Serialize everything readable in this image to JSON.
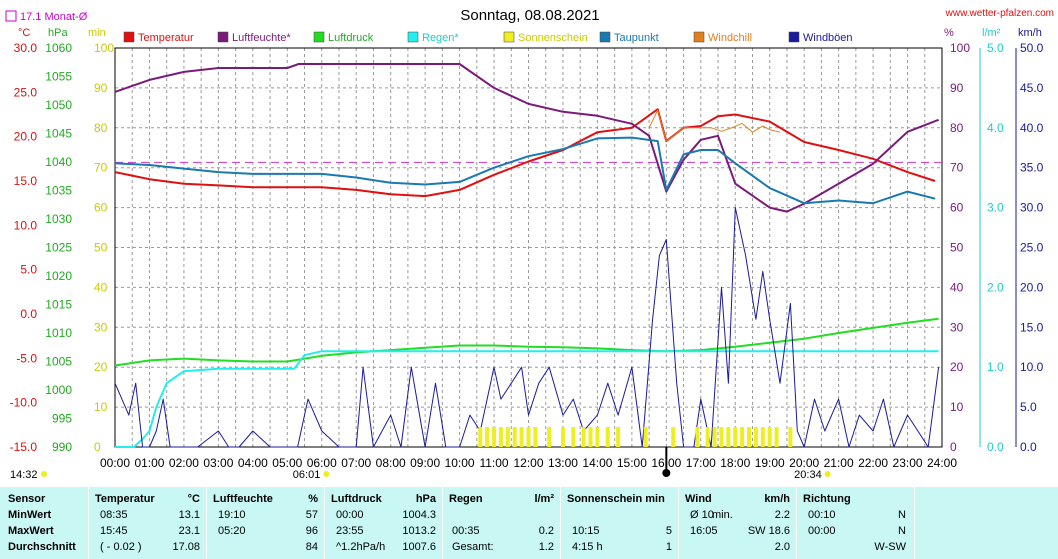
{
  "title": "Sonntag, 08.08.2021",
  "website": "www.wetter-pfalzen.com",
  "month_avg_label": "17.1 Monat-Ø",
  "units": {
    "temp": "°C",
    "pressure": "hPa",
    "sun": "min",
    "humidity": "%",
    "rain": "l/m²",
    "wind": "km/h"
  },
  "legend": [
    {
      "name": "Temperatur",
      "color": "#e01010",
      "text_color": "#e01010"
    },
    {
      "name": "Luftfeuchte*",
      "color": "#7b1a7b",
      "text_color": "#7b1a7b"
    },
    {
      "name": "Luftdruck",
      "color": "#22dd22",
      "text_color": "#22aa22"
    },
    {
      "name": "Regen*",
      "color": "#22eeee",
      "text_color": "#22cccc"
    },
    {
      "name": "Sonnenschein",
      "color": "#eeee22",
      "text_color": "#cccc00"
    },
    {
      "name": "Taupunkt",
      "color": "#1a7ab0",
      "text_color": "#1a7ab0"
    },
    {
      "name": "Windchill",
      "color": "#e08020",
      "text_color": "#e08020"
    },
    {
      "name": "Windböen",
      "color": "#1a1aa0",
      "text_color": "#1a1aa0"
    }
  ],
  "axes": {
    "temp_ticks": [
      "30.0",
      "25.0",
      "20.0",
      "15.0",
      "10.0",
      "5.0",
      "0.0",
      "-5.0",
      "-10.0",
      "-15.0"
    ],
    "pressure_ticks": [
      "1060",
      "1055",
      "1050",
      "1045",
      "1040",
      "1035",
      "1030",
      "1025",
      "1020",
      "1015",
      "1010",
      "1005",
      "1000",
      "995",
      "990"
    ],
    "sun_ticks": [
      "100",
      "90",
      "80",
      "70",
      "60",
      "50",
      "40",
      "30",
      "20",
      "10",
      "0"
    ],
    "humidity_ticks": [
      "100",
      "90",
      "80",
      "70",
      "60",
      "50",
      "40",
      "30",
      "20",
      "10",
      "0"
    ],
    "rain_ticks": [
      "5.0",
      "4.0",
      "3.0",
      "2.0",
      "1.0",
      "0.0"
    ],
    "wind_ticks": [
      "50.0",
      "45.0",
      "40.0",
      "35.0",
      "30.0",
      "25.0",
      "20.0",
      "15.0",
      "10.0",
      "5.0",
      "0.0"
    ],
    "time_ticks": [
      "00:00",
      "01:00",
      "02:00",
      "03:00",
      "04:00",
      "05:00",
      "06:00",
      "07:00",
      "08:00",
      "09:00",
      "10:00",
      "11:00",
      "12:00",
      "13:00",
      "14:00",
      "15:00",
      "16:00",
      "17:00",
      "18:00",
      "19:00",
      "20:00",
      "21:00",
      "22:00",
      "23:00",
      "24:00"
    ]
  },
  "sun_events": {
    "sunrise": "06:01",
    "sunset": "20:34",
    "current": "14:32"
  },
  "chart_data": {
    "type": "line",
    "x_unit": "hour",
    "xlim": [
      0,
      24
    ],
    "month_avg_temp": 17.1,
    "series": [
      {
        "name": "Temperatur",
        "axis": "temp",
        "ylim": [
          -15,
          30
        ],
        "x": [
          0,
          1,
          2,
          3,
          4,
          5,
          6,
          7,
          8,
          9,
          10,
          11,
          12,
          13,
          14,
          15,
          15.75,
          16,
          16.5,
          17,
          17.5,
          18,
          19,
          20,
          21,
          22,
          23,
          23.8
        ],
        "values": [
          16.0,
          15.2,
          14.7,
          14.5,
          14.3,
          14.3,
          14.3,
          14.0,
          13.5,
          13.3,
          14.0,
          15.7,
          17.2,
          18.5,
          20.5,
          21.0,
          23.1,
          19.5,
          21.0,
          21.2,
          22.3,
          22.5,
          21.7,
          19.4,
          18.5,
          17.5,
          16.0,
          15.0
        ]
      },
      {
        "name": "Luftfeuchte*",
        "axis": "humidity",
        "ylim": [
          0,
          100
        ],
        "x": [
          0,
          1,
          2,
          3,
          4,
          5,
          5.33,
          6,
          7,
          8,
          9,
          10,
          11,
          12,
          13,
          14,
          15,
          15.5,
          16,
          16.5,
          17,
          17.5,
          18,
          19,
          19.5,
          20,
          21,
          22,
          23,
          23.9
        ],
        "values": [
          89,
          92,
          94,
          95,
          95,
          95,
          96,
          96,
          96,
          96,
          96,
          96,
          90,
          86,
          84,
          83,
          81,
          78,
          64,
          72,
          77,
          78,
          66,
          60,
          59,
          61,
          66,
          71,
          79,
          82
        ]
      },
      {
        "name": "Luftdruck",
        "axis": "pressure",
        "ylim": [
          990,
          1060
        ],
        "x": [
          0,
          1,
          2,
          3,
          4,
          5,
          6,
          7,
          8,
          9,
          10,
          11,
          12,
          13,
          14,
          15,
          16,
          17,
          18,
          19,
          20,
          21,
          22,
          23,
          23.9
        ],
        "values": [
          1004.3,
          1005.2,
          1005.5,
          1005.2,
          1005.0,
          1005.0,
          1006.0,
          1006.6,
          1007.0,
          1007.4,
          1007.8,
          1007.8,
          1007.6,
          1007.5,
          1007.3,
          1007.0,
          1006.8,
          1007.0,
          1007.6,
          1008.3,
          1009.0,
          1010.0,
          1010.9,
          1011.8,
          1012.5
        ]
      },
      {
        "name": "Regen*",
        "axis": "rain",
        "ylim": [
          0,
          5
        ],
        "x": [
          0,
          0.55,
          0.8,
          1.0,
          1.2,
          1.5,
          2,
          3,
          4,
          5.2,
          5.5,
          6,
          23.9
        ],
        "values": [
          0,
          0,
          0.1,
          0.2,
          0.5,
          0.8,
          0.95,
          0.98,
          0.98,
          0.98,
          1.15,
          1.2,
          1.2
        ]
      },
      {
        "name": "Taupunkt",
        "axis": "temp",
        "ylim": [
          -15,
          30
        ],
        "x": [
          0,
          1,
          2,
          3,
          4,
          5,
          6,
          7,
          8,
          9,
          10,
          11,
          12,
          13,
          14,
          15,
          15.75,
          16,
          16.5,
          17,
          17.5,
          18,
          19,
          20,
          21,
          22,
          23,
          23.8
        ],
        "values": [
          17.0,
          16.8,
          16.4,
          16.0,
          15.8,
          15.8,
          15.8,
          15.4,
          14.8,
          14.6,
          14.9,
          16.5,
          17.8,
          18.6,
          19.8,
          19.9,
          19.5,
          14.0,
          18.0,
          18.5,
          18.5,
          17.0,
          14.2,
          12.5,
          12.8,
          12.5,
          13.8,
          13.0
        ]
      },
      {
        "name": "Windchill",
        "axis": "temp",
        "ylim": [
          -15,
          30
        ],
        "x": [
          15.5,
          15.75,
          16,
          16.5,
          17,
          17.3,
          17.6,
          17.9,
          18.2,
          18.5,
          18.8,
          19,
          19.3
        ],
        "values": [
          21.0,
          23.0,
          19.5,
          21.0,
          21.0,
          21.0,
          20.6,
          21.0,
          21.5,
          20.5,
          21.2,
          20.8,
          20.5
        ]
      },
      {
        "name": "Windböen",
        "axis": "wind",
        "ylim": [
          0,
          50
        ],
        "x": [
          0,
          0.2,
          0.4,
          0.6,
          0.8,
          1,
          1.2,
          1.4,
          1.6,
          2,
          2.4,
          3,
          3.3,
          3.6,
          4,
          4.5,
          5,
          5.3,
          5.6,
          6,
          6.5,
          7,
          7.2,
          7.5,
          8,
          8.3,
          8.6,
          9,
          9.3,
          9.6,
          10,
          10.3,
          10.6,
          11,
          11.2,
          11.5,
          11.8,
          12,
          12.3,
          12.6,
          13,
          13.3,
          13.6,
          14,
          14.3,
          14.6,
          15,
          15.3,
          15.6,
          15.8,
          16,
          16.3,
          16.5,
          16.8,
          17,
          17.3,
          17.6,
          17.8,
          18,
          18.3,
          18.6,
          18.8,
          19,
          19.3,
          19.6,
          19.8,
          20,
          20.3,
          20.6,
          21,
          21.3,
          21.6,
          22,
          22.3,
          22.6,
          23,
          23.3,
          23.6,
          23.9
        ],
        "values": [
          8,
          6,
          4,
          8,
          0,
          0,
          2,
          6,
          0,
          0,
          0,
          2,
          0,
          0,
          2,
          0,
          0,
          0,
          6,
          2,
          0,
          0,
          10,
          0,
          4,
          0,
          10,
          0,
          8,
          0,
          0,
          4,
          2,
          10,
          6,
          8,
          10,
          4,
          8,
          10,
          4,
          6,
          2,
          4,
          8,
          4,
          10,
          0,
          16,
          24,
          26,
          8,
          0,
          0,
          6,
          0,
          20,
          8,
          30,
          24,
          16,
          22,
          16,
          8,
          18,
          2,
          0,
          6,
          2,
          6,
          0,
          4,
          2,
          6,
          0,
          4,
          2,
          0,
          10
        ]
      },
      {
        "name": "Sonnenschein",
        "axis": "sun",
        "ylim": [
          0,
          100
        ],
        "x": [
          10.6,
          10.8,
          11,
          11.2,
          11.4,
          11.6,
          11.8,
          12,
          12.2,
          12.6,
          13,
          13.3,
          13.6,
          13.8,
          14,
          14.3,
          14.6,
          15.4,
          16.2,
          16.9,
          17.2,
          17.4,
          17.6,
          17.8,
          18,
          18.2,
          18.4,
          18.6,
          18.8,
          19,
          19.2,
          19.6
        ],
        "values": [
          5,
          5,
          5,
          5,
          5,
          5,
          5,
          5,
          5,
          5,
          5,
          5,
          5,
          5,
          5,
          5,
          5,
          5,
          5,
          5,
          5,
          5,
          5,
          5,
          5,
          5,
          5,
          5,
          5,
          5,
          5,
          5
        ]
      }
    ]
  },
  "stats": {
    "headers": {
      "sensor": "Sensor",
      "temp": "Temperatur",
      "temp_unit": "°C",
      "humidity": "Luftfeuchte",
      "humidity_unit": "%",
      "pressure": "Luftdruck",
      "pressure_unit": "hPa",
      "rain": "Regen",
      "rain_unit": "l/m²",
      "sun": "Sonnenschein min",
      "wind": "Wind",
      "wind_unit": "km/h",
      "dir": "Richtung"
    },
    "rows": [
      {
        "label": "MinWert",
        "temp_time": "08:35",
        "temp_val": "13.1",
        "hum_time": "19:10",
        "hum_val": "57",
        "press_time": "00:00",
        "press_val": "1004.3",
        "rain_time": "",
        "rain_val": "",
        "sun_time": "",
        "sun_val": "",
        "wind_label": "Ø 10",
        "wind_sub": "min.",
        "wind_val": "2.2",
        "dir_time": "00:10",
        "dir_val": "N"
      },
      {
        "label": "MaxWert",
        "temp_time": "15:45",
        "temp_val": "23.1",
        "hum_time": "05:20",
        "hum_val": "96",
        "press_time": "23:55",
        "press_val": "1013.2",
        "rain_time": "00:35",
        "rain_val": "0.2",
        "sun_time": "10:15",
        "sun_val": "5",
        "wind_label": "16:05",
        "wind_sub": "",
        "wind_val": "SW 18.6",
        "dir_time": "00:00",
        "dir_val": "N"
      },
      {
        "label": "Durchschnitt",
        "temp_time": "( - 0.02 )",
        "temp_val": "17.08",
        "hum_time": "",
        "hum_val": "84",
        "press_time": "^1.2hPa/h",
        "press_val": "1007.6",
        "rain_time": "Gesamt:",
        "rain_val": "1.2",
        "sun_time": "4:15 h",
        "sun_val": "1",
        "wind_label": "",
        "wind_sub": "",
        "wind_val": "2.0",
        "dir_time": "",
        "dir_val": "W-SW"
      }
    ]
  }
}
